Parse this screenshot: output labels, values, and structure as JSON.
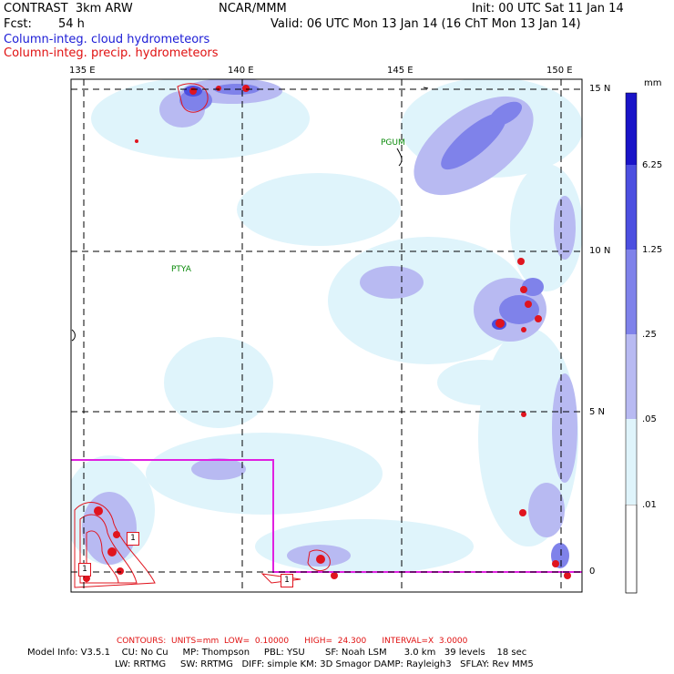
{
  "header": {
    "model_name": "CONTRAST  3km ARW",
    "institution": "NCAR/MMM",
    "init": "Init: 00 UTC Sat 11 Jan 14",
    "fcst_label": "Fcst:",
    "fcst_value": "54 h",
    "valid": "Valid: 06 UTC Mon 13 Jan 14 (16 ChT Mon 13 Jan 14)",
    "field1": "Column-integ. cloud hydrometeors",
    "field2": "Column-integ. precip. hydrometeors"
  },
  "map": {
    "lon_labels": [
      "135 E",
      "140 E",
      "145 E",
      "150 E"
    ],
    "lat_labels": [
      "15 N",
      "10 N",
      "5 N",
      "0"
    ],
    "stations": [
      "PGUM",
      "PTYA"
    ],
    "contour_labels": [
      "1",
      "1",
      "1"
    ],
    "colors": {
      "shade_lightest": "#dff4fb",
      "shade_light": "#b8baf2",
      "shade_mid": "#7f82ea",
      "shade_dark": "#4c4fe0",
      "shade_darkest": "#1a14c8",
      "contour": "#e0141e",
      "domain_box": "#e020e0"
    }
  },
  "legend": {
    "unit": "mm",
    "levels": [
      "6.25",
      "1.25",
      ".25",
      ".05",
      ".01"
    ],
    "colors": [
      "#ffffff",
      "#dff4fb",
      "#b8baf2",
      "#7f82ea",
      "#4c4fe0",
      "#1a14c8"
    ]
  },
  "footer": {
    "contours": "CONTOURS:  UNITS=mm  LOW=  0.10000      HIGH=  24.300      INTERVAL=X  3.0000",
    "model_info": "Model Info: V3.5.1    CU: No Cu     MP: Thompson     PBL: YSU       SF: Noah LSM      3.0 km   39 levels    18 sec",
    "model_info2": "LW: RRTMG     SW: RRTMG   DIFF: simple KM: 3D Smagor DAMP: Rayleigh3   SFLAY: Rev MM5"
  }
}
